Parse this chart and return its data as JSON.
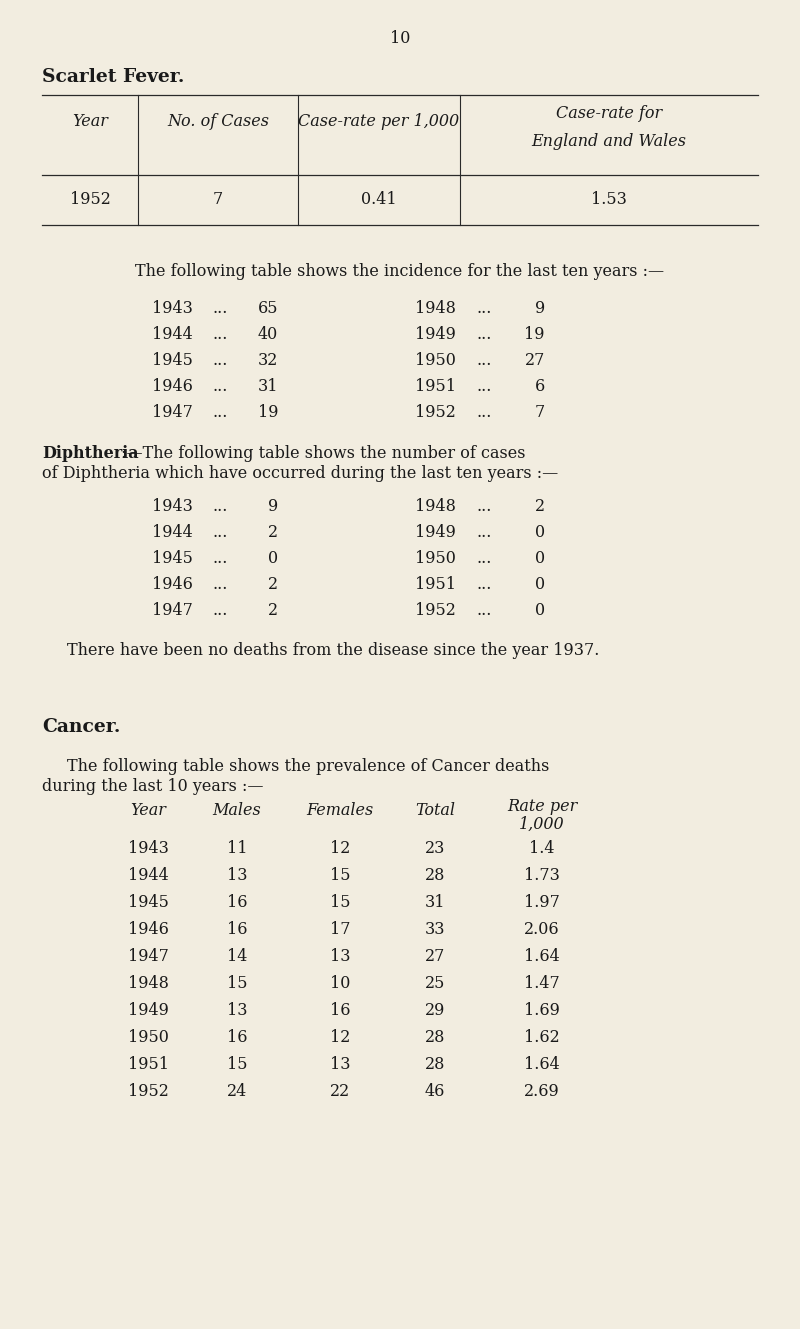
{
  "page_number": "10",
  "bg_color": "#f2ede0",
  "scarlet_fever_title": "Scarlet Fever.",
  "sf_table_headers_line1": [
    "Year",
    "No. of Cases",
    "Case-rate per 1,000",
    "Case-rate for"
  ],
  "sf_table_headers_line2": [
    "",
    "",
    "",
    "England and Wales"
  ],
  "sf_table_data": [
    [
      "1952",
      "7",
      "0.41",
      "1.53"
    ]
  ],
  "sf_incidence_text": "The following table shows the incidence for the last ten years :—",
  "sf_incidence_left": [
    [
      "1943",
      "65"
    ],
    [
      "1944",
      "40"
    ],
    [
      "1945",
      "32"
    ],
    [
      "1946",
      "31"
    ],
    [
      "1947",
      "19"
    ]
  ],
  "sf_incidence_right": [
    [
      "1948",
      "9"
    ],
    [
      "1949",
      "19"
    ],
    [
      "1950",
      "27"
    ],
    [
      "1951",
      "6"
    ],
    [
      "1952",
      "7"
    ]
  ],
  "diph_bold": "Diphtheria",
  "diph_rest_line1": " :—The following table shows the number of cases",
  "diph_line2": "of Diphtheria which have occurred during the last ten years :—",
  "diph_left": [
    [
      "1943",
      "9"
    ],
    [
      "1944",
      "2"
    ],
    [
      "1945",
      "0"
    ],
    [
      "1946",
      "2"
    ],
    [
      "1947",
      "2"
    ]
  ],
  "diph_right": [
    [
      "1948",
      "2"
    ],
    [
      "1949",
      "0"
    ],
    [
      "1950",
      "0"
    ],
    [
      "1951",
      "0"
    ],
    [
      "1952",
      "0"
    ]
  ],
  "diph_note": "There have been no deaths from the disease since the year 1937.",
  "cancer_title": "Cancer.",
  "cancer_intro_line1": "The following table shows the prevalence of Cancer deaths",
  "cancer_intro_line2": "during the last 10 years :—",
  "cancer_col_headers": [
    "Year",
    "Males",
    "Females",
    "Total",
    "Rate per",
    "1,000"
  ],
  "cancer_data": [
    [
      "1943",
      "11",
      "12",
      "23",
      "1.4"
    ],
    [
      "1944",
      "13",
      "15",
      "28",
      "1.73"
    ],
    [
      "1945",
      "16",
      "15",
      "31",
      "1.97"
    ],
    [
      "1946",
      "16",
      "17",
      "33",
      "2.06"
    ],
    [
      "1947",
      "14",
      "13",
      "27",
      "1.64"
    ],
    [
      "1948",
      "15",
      "10",
      "25",
      "1.47"
    ],
    [
      "1949",
      "13",
      "16",
      "29",
      "1.69"
    ],
    [
      "1950",
      "16",
      "12",
      "28",
      "1.62"
    ],
    [
      "1951",
      "15",
      "13",
      "28",
      "1.64"
    ],
    [
      "1952",
      "24",
      "22",
      "46",
      "2.69"
    ]
  ]
}
